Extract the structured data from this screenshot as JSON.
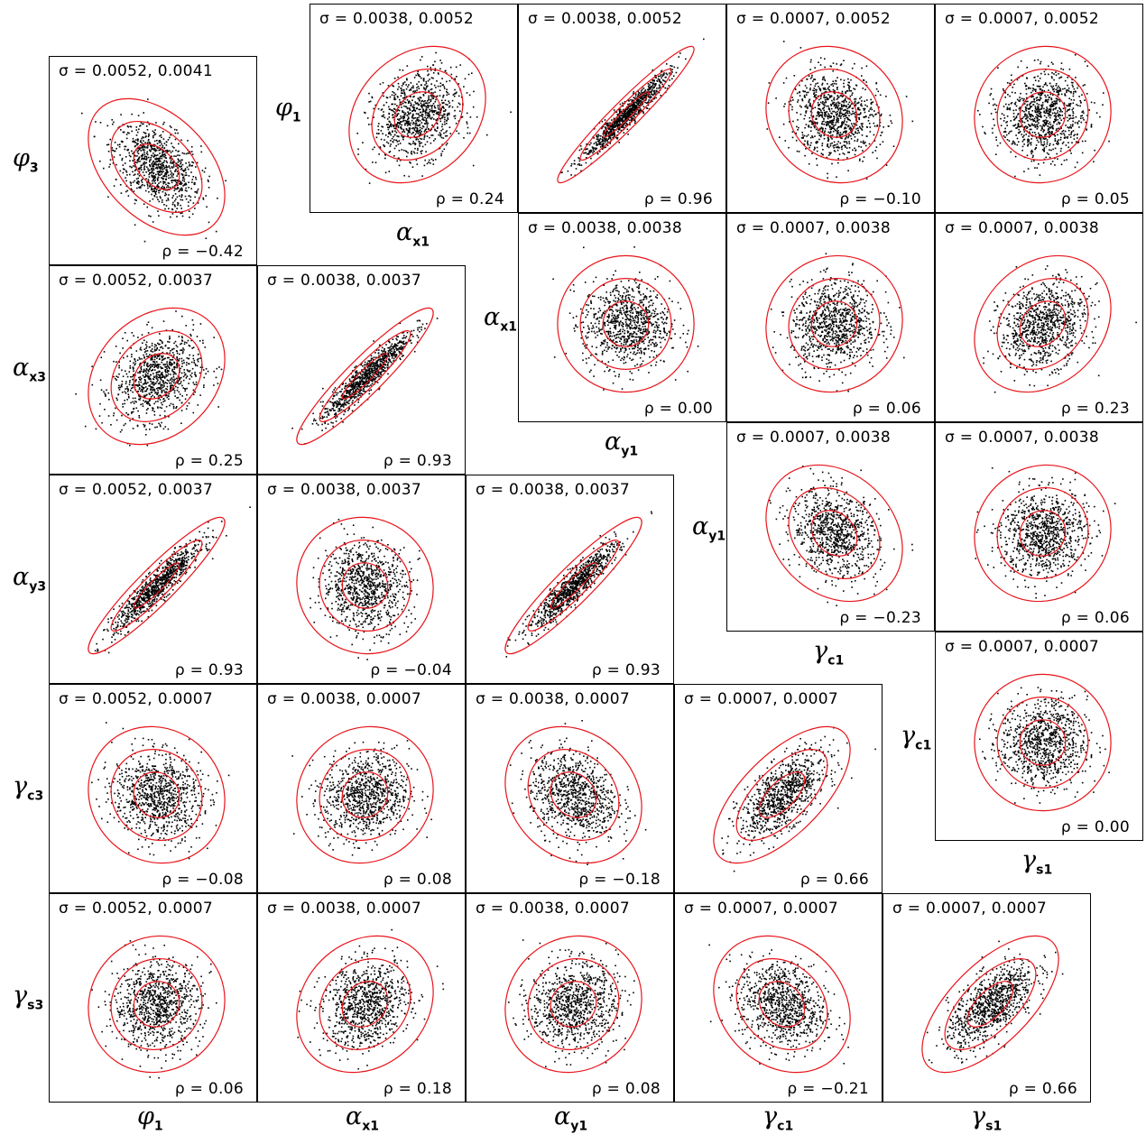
{
  "chart_data": {
    "type": "scatter",
    "description_labels": {
      "sigma_prefix": "σ = ",
      "rho_prefix": "ρ = "
    },
    "blocks": [
      {
        "name": "lower-left",
        "row_labels": [
          {
            "sym": "φ",
            "sub": "3"
          },
          {
            "sym": "α",
            "sub": "x3"
          },
          {
            "sym": "α",
            "sub": "y3"
          },
          {
            "sym": "γ",
            "sub": "c3"
          },
          {
            "sym": "γ",
            "sub": "s3"
          }
        ],
        "col_labels": [
          {
            "sym": "φ",
            "sub": "1"
          },
          {
            "sym": "α",
            "sub": "x1"
          },
          {
            "sym": "α",
            "sub": "y1"
          },
          {
            "sym": "γ",
            "sub": "c1"
          },
          {
            "sym": "γ",
            "sub": "s1"
          }
        ],
        "panels": [
          {
            "row": 0,
            "col": 0,
            "sigma": "0.0052, 0.0041",
            "rho": "−0.42",
            "r": -0.42
          },
          {
            "row": 1,
            "col": 0,
            "sigma": "0.0052, 0.0037",
            "rho": "0.25",
            "r": 0.25
          },
          {
            "row": 1,
            "col": 1,
            "sigma": "0.0038, 0.0037",
            "rho": "0.93",
            "r": 0.93
          },
          {
            "row": 2,
            "col": 0,
            "sigma": "0.0052, 0.0037",
            "rho": "0.93",
            "r": 0.93
          },
          {
            "row": 2,
            "col": 1,
            "sigma": "0.0038, 0.0037",
            "rho": "−0.04",
            "r": -0.04
          },
          {
            "row": 2,
            "col": 2,
            "sigma": "0.0038, 0.0037",
            "rho": "0.93",
            "r": 0.93
          },
          {
            "row": 3,
            "col": 0,
            "sigma": "0.0052, 0.0007",
            "rho": "−0.08",
            "r": -0.08
          },
          {
            "row": 3,
            "col": 1,
            "sigma": "0.0038, 0.0007",
            "rho": "0.08",
            "r": 0.08
          },
          {
            "row": 3,
            "col": 2,
            "sigma": "0.0038, 0.0007",
            "rho": "−0.18",
            "r": -0.18
          },
          {
            "row": 3,
            "col": 3,
            "sigma": "0.0007, 0.0007",
            "rho": "0.66",
            "r": 0.66
          },
          {
            "row": 4,
            "col": 0,
            "sigma": "0.0052, 0.0007",
            "rho": "0.06",
            "r": 0.06
          },
          {
            "row": 4,
            "col": 1,
            "sigma": "0.0038, 0.0007",
            "rho": "0.18",
            "r": 0.18
          },
          {
            "row": 4,
            "col": 2,
            "sigma": "0.0038, 0.0007",
            "rho": "0.08",
            "r": 0.08
          },
          {
            "row": 4,
            "col": 3,
            "sigma": "0.0007, 0.0007",
            "rho": "−0.21",
            "r": -0.21
          },
          {
            "row": 4,
            "col": 4,
            "sigma": "0.0007, 0.0007",
            "rho": "0.66",
            "r": 0.66
          }
        ]
      },
      {
        "name": "upper-right",
        "row_labels": [
          {
            "sym": "φ",
            "sub": "1"
          },
          {
            "sym": "α",
            "sub": "x1"
          },
          {
            "sym": "α",
            "sub": "y1"
          },
          {
            "sym": "γ",
            "sub": "c1"
          }
        ],
        "col_labels": [
          {
            "sym": "α",
            "sub": "x1"
          },
          {
            "sym": "α",
            "sub": "y1"
          },
          {
            "sym": "γ",
            "sub": "c1"
          },
          {
            "sym": "γ",
            "sub": "s1"
          }
        ],
        "panels": [
          {
            "row": 0,
            "col": 0,
            "sigma": "0.0038, 0.0052",
            "rho": "0.24",
            "r": 0.24
          },
          {
            "row": 0,
            "col": 1,
            "sigma": "0.0038, 0.0052",
            "rho": "0.96",
            "r": 0.96
          },
          {
            "row": 0,
            "col": 2,
            "sigma": "0.0007, 0.0052",
            "rho": "−0.10",
            "r": -0.1
          },
          {
            "row": 0,
            "col": 3,
            "sigma": "0.0007, 0.0052",
            "rho": "0.05",
            "r": 0.05
          },
          {
            "row": 1,
            "col": 1,
            "sigma": "0.0038, 0.0038",
            "rho": "0.00",
            "r": 0.0
          },
          {
            "row": 1,
            "col": 2,
            "sigma": "0.0007, 0.0038",
            "rho": "0.06",
            "r": 0.06
          },
          {
            "row": 1,
            "col": 3,
            "sigma": "0.0007, 0.0038",
            "rho": "0.23",
            "r": 0.23
          },
          {
            "row": 2,
            "col": 2,
            "sigma": "0.0007, 0.0038",
            "rho": "−0.23",
            "r": -0.23
          },
          {
            "row": 2,
            "col": 3,
            "sigma": "0.0007, 0.0038",
            "rho": "0.06",
            "r": 0.06
          },
          {
            "row": 3,
            "col": 3,
            "sigma": "0.0007, 0.0007",
            "rho": "0.00",
            "r": 0.0
          }
        ]
      }
    ],
    "points_per_panel": 900,
    "ellipse_levels_sigma": [
      1,
      2,
      3
    ],
    "colors": {
      "points": "#000000",
      "ellipses": "#e8141a",
      "frame": "#000000"
    }
  }
}
